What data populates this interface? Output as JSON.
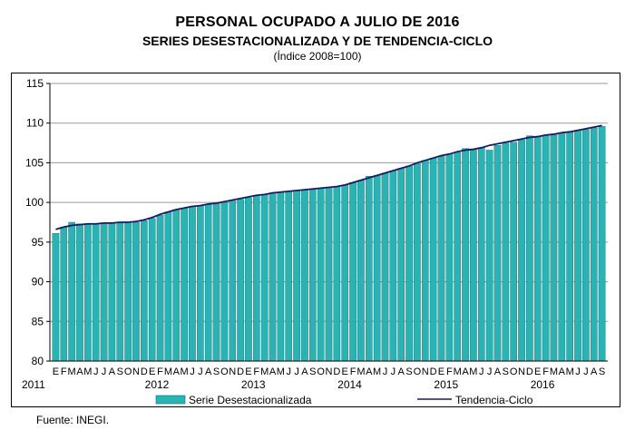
{
  "title": "PERSONAL OCUPADO A JULIO DE 2016",
  "subtitle": "SERIES DESESTACIONALIZADA Y DE TENDENCIA-CICLO",
  "index_note": "(Índice 2008=100)",
  "source": "Fuente: INEGI.",
  "colors": {
    "bar": "#2bb3b3",
    "bar_edge": "#0d6f74",
    "trend": "#1a1a5c"
  },
  "chart_data": {
    "type": "bar",
    "ylim": [
      80,
      115
    ],
    "yticks": [
      "80",
      "85",
      "90",
      "95",
      "100",
      "105",
      "110",
      "115"
    ],
    "month_letters": [
      "E",
      "F",
      "M",
      "A",
      "M",
      "J",
      "J",
      "A",
      "S",
      "O",
      "N",
      "D"
    ],
    "year_labels": [
      "2011",
      "2012",
      "2013",
      "2014",
      "2015",
      "2016"
    ],
    "series": [
      {
        "name": "Serie Desestacionalizada",
        "type": "bar",
        "values": [
          96.1,
          96.9,
          97.5,
          97.3,
          97.3,
          97.3,
          97.4,
          97.4,
          97.4,
          97.5,
          97.5,
          97.7,
          98.0,
          98.4,
          98.8,
          99.1,
          99.3,
          99.5,
          99.6,
          99.7,
          99.9,
          100.0,
          100.2,
          100.4,
          100.6,
          100.9,
          101.0,
          101.2,
          101.3,
          101.4,
          101.5,
          101.6,
          101.6,
          101.8,
          101.9,
          102.0,
          102.2,
          102.5,
          102.8,
          103.3,
          103.4,
          103.7,
          104.0,
          104.3,
          104.6,
          104.9,
          105.3,
          105.6,
          105.8,
          106.1,
          106.3,
          106.8,
          106.6,
          106.9,
          106.6,
          107.2,
          107.5,
          107.6,
          107.9,
          108.4,
          108.3,
          108.5,
          108.6,
          108.8,
          108.9,
          109.1,
          109.2,
          109.4,
          109.6
        ]
      },
      {
        "name": "Tendencia-Ciclo",
        "type": "line",
        "values": [
          96.6,
          96.9,
          97.1,
          97.2,
          97.3,
          97.3,
          97.4,
          97.4,
          97.5,
          97.5,
          97.6,
          97.8,
          98.1,
          98.5,
          98.8,
          99.1,
          99.3,
          99.5,
          99.6,
          99.8,
          99.9,
          100.1,
          100.3,
          100.5,
          100.7,
          100.9,
          101.0,
          101.2,
          101.3,
          101.4,
          101.5,
          101.6,
          101.7,
          101.8,
          101.9,
          102.0,
          102.2,
          102.5,
          102.8,
          103.1,
          103.4,
          103.7,
          104.0,
          104.3,
          104.6,
          105.0,
          105.3,
          105.6,
          105.9,
          106.1,
          106.4,
          106.6,
          106.7,
          106.9,
          107.2,
          107.4,
          107.6,
          107.8,
          108.0,
          108.2,
          108.3,
          108.5,
          108.6,
          108.8,
          108.9,
          109.1,
          109.3,
          109.5,
          109.7
        ]
      }
    ]
  }
}
